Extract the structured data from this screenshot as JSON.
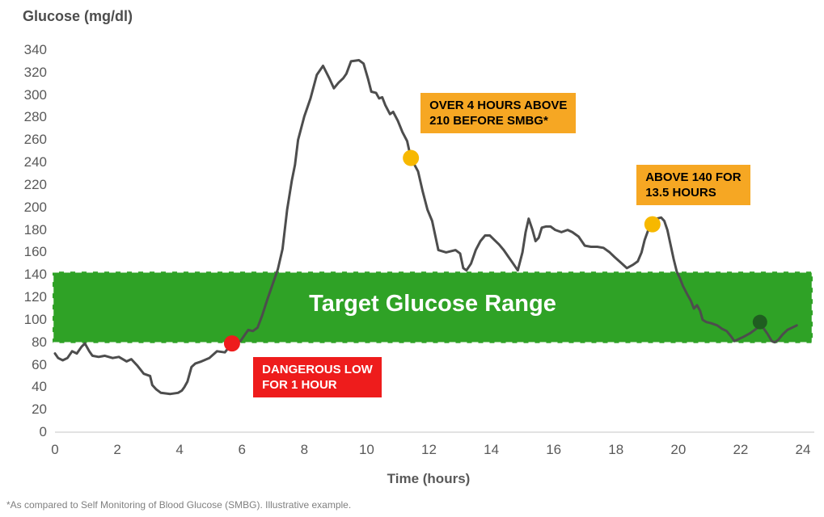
{
  "page": {
    "title": "Glucose (mg/dl)",
    "footnote": "*As compared to Self Monitoring of Blood Glucose (SMBG). Illustrative example."
  },
  "chart_data": {
    "type": "line",
    "title": "Glucose (mg/dl)",
    "xlabel": "Time (hours)",
    "ylabel": "Glucose (mg/dl)",
    "xlim": [
      0,
      24
    ],
    "ylim": [
      0,
      340
    ],
    "x_ticks": [
      0,
      2,
      4,
      6,
      8,
      10,
      12,
      14,
      16,
      18,
      20,
      22,
      24
    ],
    "y_ticks": [
      0,
      20,
      40,
      60,
      80,
      100,
      120,
      140,
      160,
      180,
      200,
      220,
      240,
      260,
      280,
      300,
      320,
      340
    ],
    "grid": false,
    "colors": {
      "line": "#4d4d4d",
      "axis_text": "#595959",
      "baseline": "#d8d8d8",
      "band_green": "#2fa226",
      "band_border": "#ffffff",
      "callout_orange": "#f6a723",
      "callout_red": "#ee1c1c",
      "marker_yellow": "#f7b800",
      "marker_red": "#ee1c1c",
      "marker_dark_green": "#1f5e20"
    },
    "target_band": {
      "label": "Target Glucose Range",
      "from": 80,
      "to": 140,
      "color": "#2fa226",
      "label_color": "#ffffff",
      "border_style": "dashed-white"
    },
    "series": [
      {
        "name": "glucose",
        "color": "#4d4d4d",
        "points": [
          [
            0,
            70
          ],
          [
            0.1,
            66
          ],
          [
            0.25,
            64
          ],
          [
            0.4,
            66
          ],
          [
            0.55,
            72
          ],
          [
            0.7,
            70
          ],
          [
            0.85,
            76
          ],
          [
            0.96,
            79
          ],
          [
            1.1,
            72
          ],
          [
            1.2,
            68
          ],
          [
            1.4,
            67
          ],
          [
            1.6,
            68
          ],
          [
            1.85,
            66
          ],
          [
            2.05,
            67
          ],
          [
            2.3,
            63
          ],
          [
            2.45,
            65
          ],
          [
            2.65,
            59
          ],
          [
            2.85,
            52
          ],
          [
            3.05,
            50
          ],
          [
            3.12,
            42
          ],
          [
            3.25,
            38
          ],
          [
            3.4,
            35
          ],
          [
            3.7,
            34
          ],
          [
            3.95,
            35
          ],
          [
            4.07,
            37
          ],
          [
            4.15,
            40
          ],
          [
            4.25,
            45
          ],
          [
            4.38,
            58
          ],
          [
            4.5,
            61
          ],
          [
            4.7,
            63
          ],
          [
            4.95,
            66
          ],
          [
            5.2,
            72
          ],
          [
            5.45,
            71
          ],
          [
            5.68,
            79
          ],
          [
            5.95,
            81
          ],
          [
            6.2,
            91
          ],
          [
            6.35,
            90
          ],
          [
            6.5,
            93
          ],
          [
            6.65,
            104
          ],
          [
            6.8,
            117
          ],
          [
            7.0,
            133
          ],
          [
            7.15,
            145
          ],
          [
            7.3,
            163
          ],
          [
            7.45,
            198
          ],
          [
            7.6,
            224
          ],
          [
            7.7,
            238
          ],
          [
            7.8,
            260
          ],
          [
            8.0,
            281
          ],
          [
            8.2,
            297
          ],
          [
            8.4,
            318
          ],
          [
            8.6,
            326
          ],
          [
            8.8,
            315
          ],
          [
            8.95,
            306
          ],
          [
            9.1,
            311
          ],
          [
            9.25,
            315
          ],
          [
            9.35,
            319
          ],
          [
            9.5,
            330
          ],
          [
            9.75,
            331
          ],
          [
            9.9,
            328
          ],
          [
            10.05,
            314
          ],
          [
            10.15,
            303
          ],
          [
            10.3,
            302
          ],
          [
            10.4,
            297
          ],
          [
            10.5,
            298
          ],
          [
            10.6,
            291
          ],
          [
            10.75,
            283
          ],
          [
            10.85,
            285
          ],
          [
            11.0,
            277
          ],
          [
            11.15,
            267
          ],
          [
            11.3,
            259
          ],
          [
            11.42,
            244
          ],
          [
            11.65,
            232
          ],
          [
            11.8,
            214
          ],
          [
            11.95,
            198
          ],
          [
            12.1,
            188
          ],
          [
            12.3,
            162
          ],
          [
            12.55,
            160
          ],
          [
            12.85,
            162
          ],
          [
            13.0,
            159
          ],
          [
            13.1,
            146
          ],
          [
            13.2,
            144
          ],
          [
            13.35,
            150
          ],
          [
            13.5,
            162
          ],
          [
            13.65,
            170
          ],
          [
            13.8,
            175
          ],
          [
            13.95,
            175
          ],
          [
            14.1,
            171
          ],
          [
            14.25,
            167
          ],
          [
            14.4,
            162
          ],
          [
            14.55,
            156
          ],
          [
            14.7,
            150
          ],
          [
            14.85,
            144
          ],
          [
            15.0,
            160
          ],
          [
            15.1,
            178
          ],
          [
            15.2,
            190
          ],
          [
            15.32,
            180
          ],
          [
            15.42,
            170
          ],
          [
            15.52,
            173
          ],
          [
            15.62,
            182
          ],
          [
            15.75,
            183
          ],
          [
            15.9,
            183
          ],
          [
            16.05,
            180
          ],
          [
            16.25,
            178
          ],
          [
            16.45,
            180
          ],
          [
            16.6,
            178
          ],
          [
            16.8,
            174
          ],
          [
            17.0,
            166
          ],
          [
            17.2,
            165
          ],
          [
            17.4,
            165
          ],
          [
            17.6,
            164
          ],
          [
            17.8,
            160
          ],
          [
            17.95,
            156
          ],
          [
            18.15,
            151
          ],
          [
            18.35,
            146
          ],
          [
            18.55,
            149
          ],
          [
            18.7,
            152
          ],
          [
            18.82,
            160
          ],
          [
            18.92,
            171
          ],
          [
            19.05,
            181
          ],
          [
            19.17,
            185
          ],
          [
            19.3,
            190
          ],
          [
            19.45,
            191
          ],
          [
            19.55,
            188
          ],
          [
            19.65,
            180
          ],
          [
            19.75,
            167
          ],
          [
            19.85,
            154
          ],
          [
            19.95,
            143
          ],
          [
            20.05,
            137
          ],
          [
            20.15,
            130
          ],
          [
            20.3,
            122
          ],
          [
            20.4,
            117
          ],
          [
            20.5,
            110
          ],
          [
            20.6,
            113
          ],
          [
            20.7,
            108
          ],
          [
            20.78,
            100
          ],
          [
            20.9,
            98
          ],
          [
            21.05,
            97
          ],
          [
            21.25,
            95
          ],
          [
            21.4,
            92
          ],
          [
            21.55,
            90
          ],
          [
            21.7,
            85
          ],
          [
            21.8,
            81
          ],
          [
            21.95,
            83
          ],
          [
            22.1,
            85
          ],
          [
            22.3,
            88
          ],
          [
            22.45,
            91
          ],
          [
            22.6,
            94
          ],
          [
            22.72,
            93
          ],
          [
            22.85,
            88
          ],
          [
            23.0,
            81
          ],
          [
            23.1,
            80
          ],
          [
            23.2,
            82
          ],
          [
            23.35,
            87
          ],
          [
            23.5,
            91
          ],
          [
            23.65,
            93
          ],
          [
            23.8,
            95
          ]
        ]
      }
    ],
    "markers": [
      {
        "name": "dangerous-low-marker",
        "x": 5.68,
        "y": 79,
        "r": 10,
        "color": "#ee1c1c"
      },
      {
        "name": "high-above-210-marker",
        "x": 11.42,
        "y": 244,
        "r": 10,
        "color": "#f7b800"
      },
      {
        "name": "high-above-140-marker",
        "x": 19.17,
        "y": 185,
        "r": 10,
        "color": "#f7b800"
      },
      {
        "name": "end-in-range-marker",
        "x": 22.62,
        "y": 98,
        "r": 9,
        "color": "#1f5e20"
      }
    ],
    "callouts": [
      {
        "name": "callout-over-4-hours",
        "lines": [
          "OVER 4 HOURS ABOVE",
          "210 BEFORE SMBG*"
        ],
        "bg": "#f6a723",
        "text_color": "#000000",
        "anchor_x": 11.73,
        "anchor_y": 302
      },
      {
        "name": "callout-above-140",
        "lines": [
          "ABOVE 140 FOR",
          "13.5 HOURS"
        ],
        "bg": "#f6a723",
        "text_color": "#000000",
        "anchor_x": 18.66,
        "anchor_y": 238
      },
      {
        "name": "callout-dangerous-low",
        "lines": [
          "DANGEROUS LOW",
          "FOR 1 HOUR"
        ],
        "bg": "#ee1c1c",
        "text_color": "#ffffff",
        "anchor_x": 6.36,
        "anchor_y": 66.8
      }
    ],
    "legend": null
  }
}
